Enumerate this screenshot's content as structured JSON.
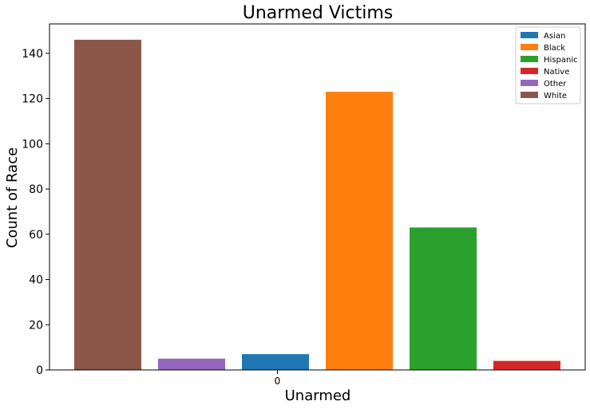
{
  "chart_data": {
    "type": "bar",
    "title": "Unarmed Victims",
    "xlabel": "Unarmed",
    "ylabel": "Count of Race",
    "categories": [
      "0"
    ],
    "ylim": [
      0,
      153
    ],
    "yticks": [
      0,
      20,
      40,
      60,
      80,
      100,
      120,
      140
    ],
    "grid": false,
    "legend_position": "top-right",
    "series": [
      {
        "name": "Asian",
        "value": 7,
        "color": "#1f77b4",
        "slot": 2
      },
      {
        "name": "Black",
        "value": 123,
        "color": "#ff7f0e",
        "slot": 3
      },
      {
        "name": "Hispanic",
        "value": 63,
        "color": "#2ca02c",
        "slot": 4
      },
      {
        "name": "Native",
        "value": 4,
        "color": "#d62728",
        "slot": 5
      },
      {
        "name": "Other",
        "value": 5,
        "color": "#9467bd",
        "slot": 1
      },
      {
        "name": "White",
        "value": 146,
        "color": "#8c564b",
        "slot": 0
      }
    ]
  }
}
